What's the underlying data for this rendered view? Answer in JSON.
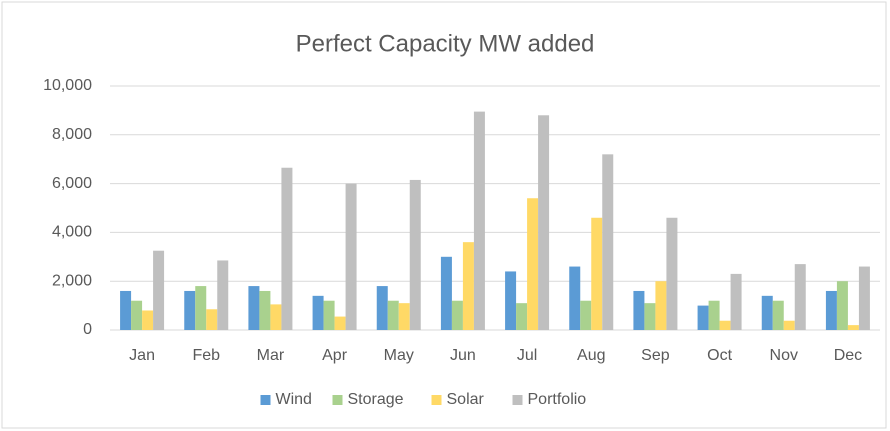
{
  "chart_data": {
    "type": "bar",
    "title": "Perfect Capacity MW added",
    "categories": [
      "Jan",
      "Feb",
      "Mar",
      "Apr",
      "May",
      "Jun",
      "Jul",
      "Aug",
      "Sep",
      "Oct",
      "Nov",
      "Dec"
    ],
    "series": [
      {
        "name": "Wind",
        "color": "#5b9bd5",
        "values": [
          1600,
          1600,
          1800,
          1400,
          1800,
          3000,
          2400,
          2600,
          1600,
          1000,
          1400,
          1600
        ]
      },
      {
        "name": "Storage",
        "color": "#a9d18e",
        "values": [
          1200,
          1800,
          1600,
          1200,
          1200,
          1200,
          1100,
          1200,
          1100,
          1200,
          1200,
          2000
        ]
      },
      {
        "name": "Solar",
        "color": "#ffd966",
        "values": [
          800,
          850,
          1050,
          550,
          1100,
          3600,
          5400,
          4600,
          2000,
          380,
          380,
          200
        ]
      },
      {
        "name": "Portfolio",
        "color": "#bfbfbf",
        "values": [
          3250,
          2850,
          6650,
          6000,
          6150,
          8950,
          8800,
          7200,
          4600,
          2300,
          2700,
          2600
        ]
      }
    ],
    "ylim": [
      0,
      10000
    ],
    "yticks": [
      0,
      {
        "value": 2000,
        "label": "2,000"
      },
      {
        "value": 4000,
        "label": "4,000"
      },
      {
        "value": 6000,
        "label": "6,000"
      },
      {
        "value": 8000,
        "label": "8,000"
      },
      {
        "value": 10000,
        "label": "10,000"
      }
    ],
    "grid": true,
    "legend": "bottom"
  }
}
